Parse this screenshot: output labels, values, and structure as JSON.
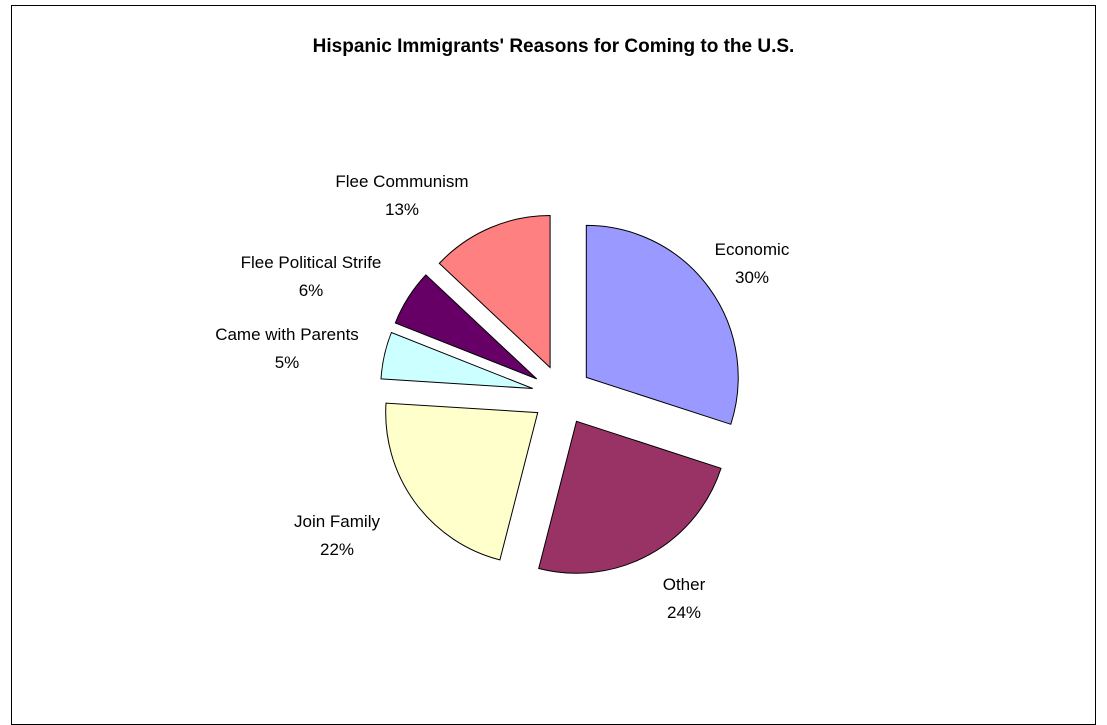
{
  "chart_data": {
    "type": "pie",
    "title": "Hispanic Immigrants' Reasons for Coming to the U.S.",
    "exploded": true,
    "slices": [
      {
        "label": "Economic",
        "value": 30,
        "value_label": "30%",
        "color": "#9999FF"
      },
      {
        "label": "Other",
        "value": 24,
        "value_label": "24%",
        "color": "#993366"
      },
      {
        "label": "Join Family",
        "value": 22,
        "value_label": "22%",
        "color": "#FFFFCC"
      },
      {
        "label": "Came with Parents",
        "value": 5,
        "value_label": "5%",
        "color": "#CCFFFF"
      },
      {
        "label": "Flee Political Strife",
        "value": 6,
        "value_label": "6%",
        "color": "#660066"
      },
      {
        "label": "Flee Communism",
        "value": 13,
        "value_label": "13%",
        "color": "#FF8080"
      }
    ]
  }
}
